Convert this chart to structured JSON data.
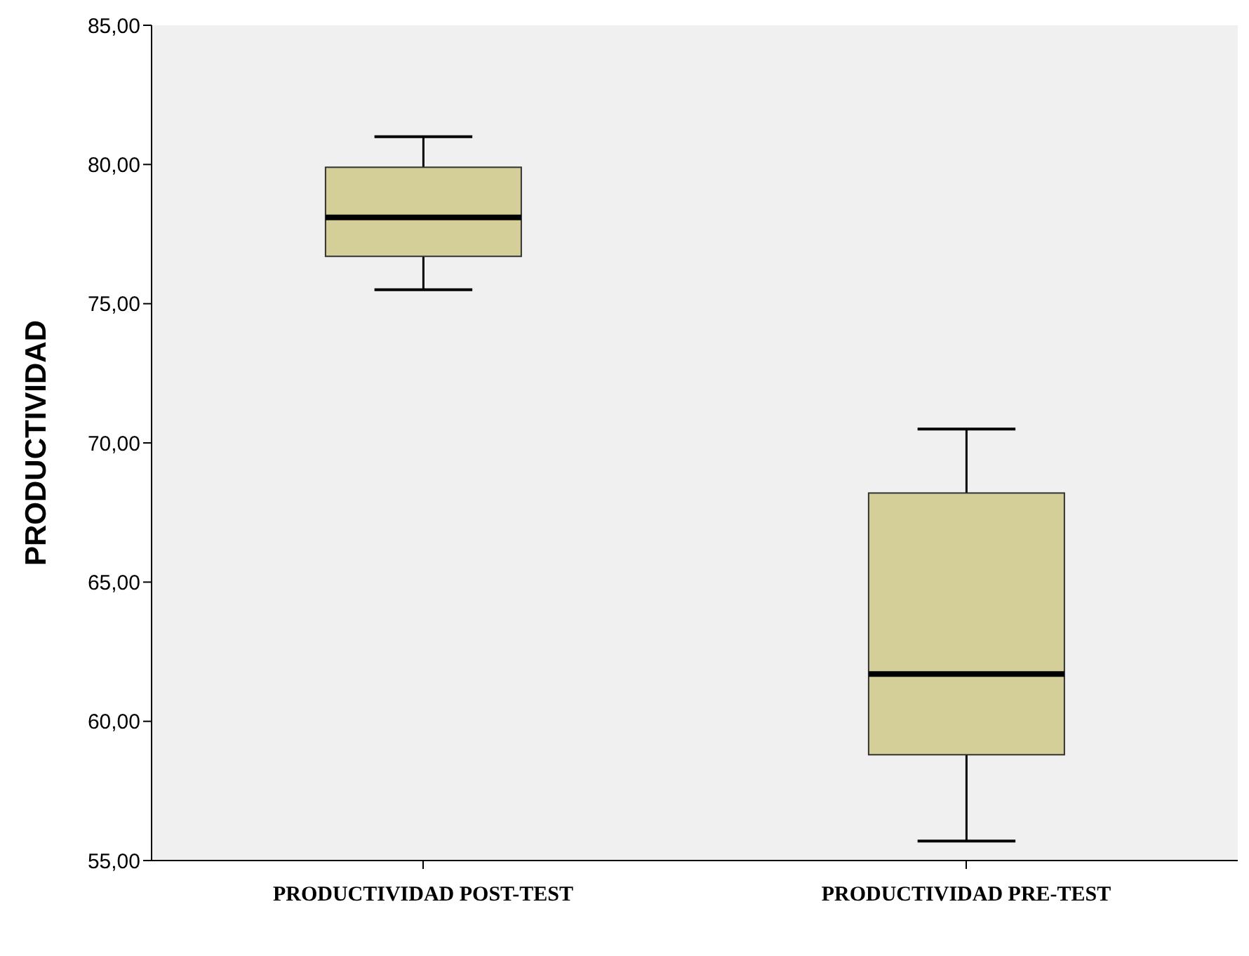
{
  "chart_data": {
    "type": "box",
    "ylabel": "PRODUCTIVIDAD",
    "categories": [
      "PRODUCTIVIDAD POST-TEST",
      "PRODUCTIVIDAD PRE-TEST"
    ],
    "series": [
      {
        "color": "#d4ce98",
        "boxes": [
          {
            "low": 75.5,
            "q1": 76.7,
            "median": 78.1,
            "q3": 79.9,
            "high": 81.0
          },
          {
            "low": 55.7,
            "q1": 58.8,
            "median": 61.7,
            "q3": 68.2,
            "high": 70.5
          }
        ]
      }
    ],
    "ylim": [
      55,
      85
    ],
    "yticks": [
      {
        "value": 55,
        "label": "55,00"
      },
      {
        "value": 60,
        "label": "60,00"
      },
      {
        "value": 65,
        "label": "65,00"
      },
      {
        "value": 70,
        "label": "70,00"
      },
      {
        "value": 75,
        "label": "75,00"
      },
      {
        "value": 80,
        "label": "80,00"
      },
      {
        "value": 85,
        "label": "85,00"
      }
    ],
    "grid": false,
    "legend": false
  }
}
